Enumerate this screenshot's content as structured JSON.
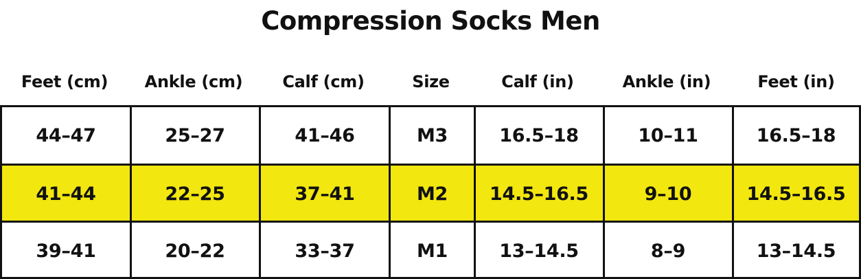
{
  "title": "Compression Socks Men",
  "table": {
    "columns": [
      "Feet (cm)",
      "Ankle (cm)",
      "Calf (cm)",
      "Size",
      "Calf (in)",
      "Ankle (in)",
      "Feet (in)"
    ],
    "rows": [
      [
        "44–47",
        "25–27",
        "41–46",
        "M3",
        "16.5–18",
        "10–11",
        "16.5–18"
      ],
      [
        "41–44",
        "22–25",
        "37–41",
        "M2",
        "14.5–16.5",
        "9–10",
        "14.5–16.5"
      ],
      [
        "39–41",
        "20–22",
        "33–37",
        "M1",
        "13–14.5",
        "8–9",
        "13–14.5"
      ]
    ],
    "highlight_row_color": "#f2e70f",
    "border_color": "#111111"
  }
}
